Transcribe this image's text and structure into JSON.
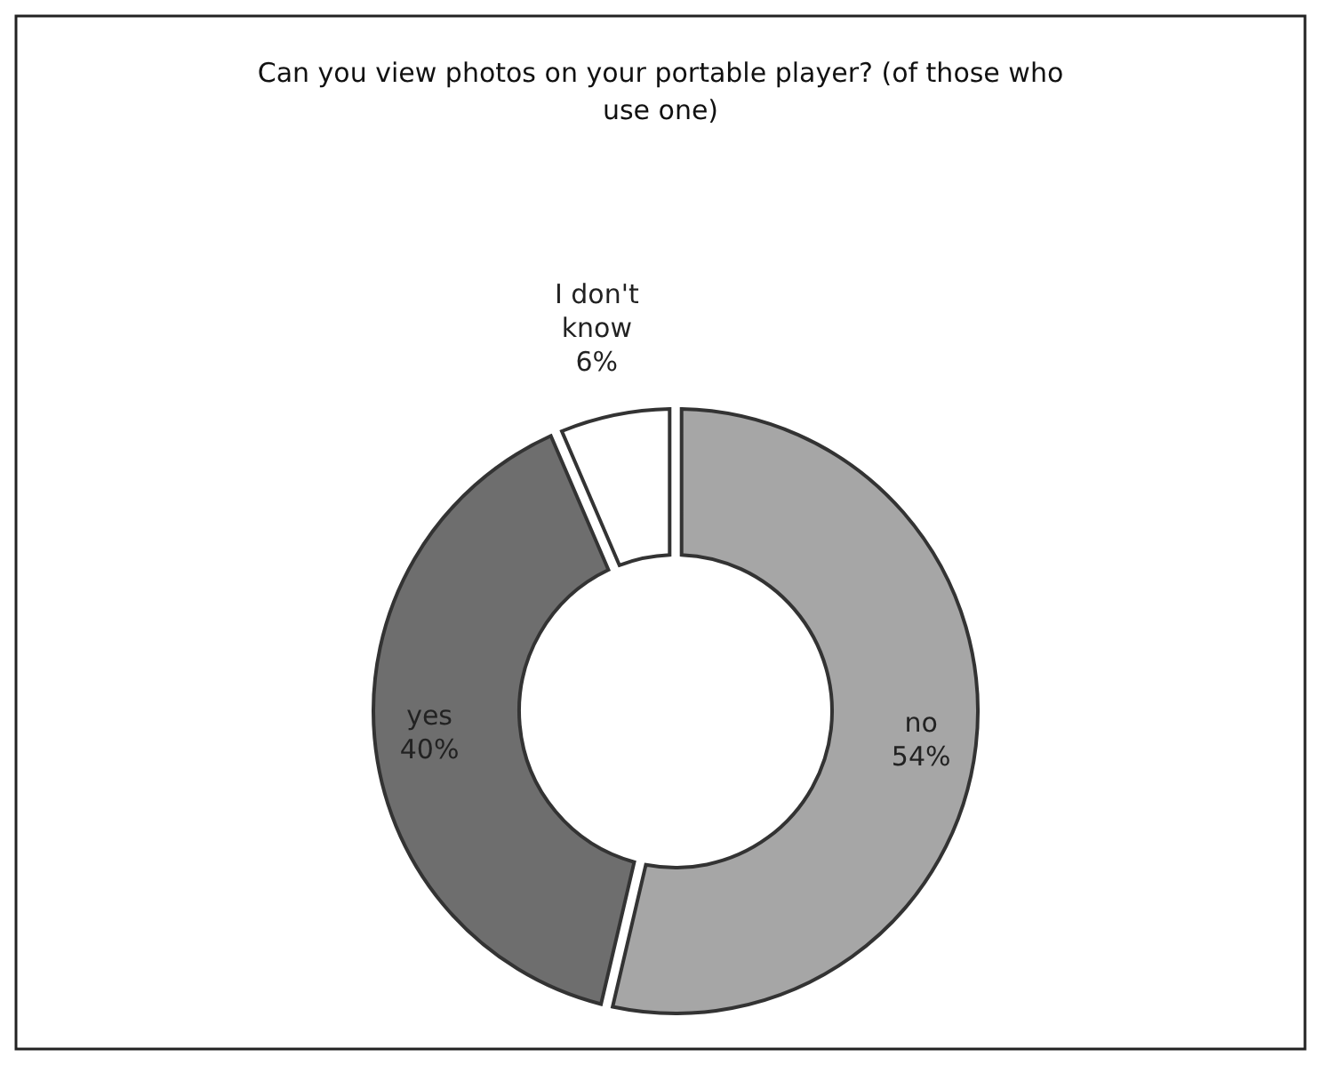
{
  "chart_data": {
    "type": "donut",
    "title": "Can you view photos on your portable player? (of those who use one)",
    "categories": [
      "no",
      "yes",
      "I don't know"
    ],
    "values": [
      54,
      40,
      6
    ],
    "value_labels": [
      "54%",
      "40%",
      "6%"
    ],
    "colors": [
      "#a6a6a6",
      "#6e6e6e",
      "#ffffff"
    ],
    "legend": false
  }
}
